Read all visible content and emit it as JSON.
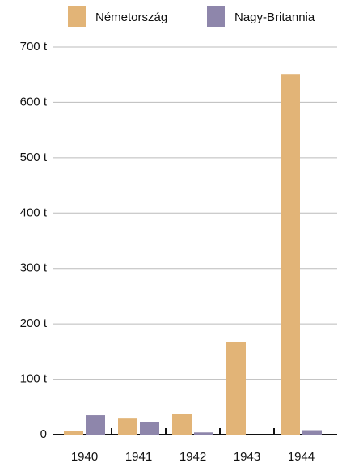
{
  "chart_data": {
    "type": "bar",
    "categories": [
      "1940",
      "1941",
      "1942",
      "1943",
      "1944"
    ],
    "series": [
      {
        "name": "Németország",
        "color": "#e2b477",
        "values": [
          7,
          29,
          38,
          168,
          650
        ]
      },
      {
        "name": "Nagy-Britannia",
        "color": "#8e86ab",
        "values": [
          35,
          22,
          4,
          0,
          8
        ]
      }
    ],
    "ylim": [
      0,
      700
    ],
    "yticks": [
      0,
      {
        "value": 100,
        "label": "100 t"
      },
      {
        "value": 200,
        "label": "200 t"
      },
      {
        "value": 300,
        "label": "300 t"
      },
      {
        "value": 400,
        "label": "400 t"
      },
      {
        "value": 500,
        "label": "500 t"
      },
      {
        "value": 600,
        "label": "600 t"
      },
      {
        "value": 700,
        "label": "700 t"
      }
    ],
    "grid": true,
    "legend": "top"
  }
}
